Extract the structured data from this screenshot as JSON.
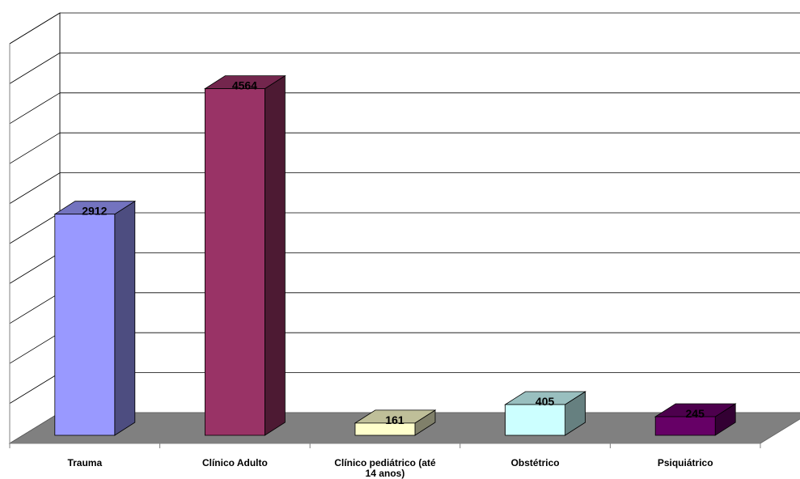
{
  "chart_data": {
    "type": "bar",
    "categories": [
      "Trauma",
      "Clínico Adulto",
      "Clínico pediátrico (até 14 anos)",
      "Obstétrico",
      "Psiquiátrico"
    ],
    "category_lines": [
      [
        "Trauma"
      ],
      [
        "Clínico Adulto"
      ],
      [
        "Clínico pediátrico (até",
        "14 anos)"
      ],
      [
        "Obstétrico"
      ],
      [
        "Psiquiátrico"
      ]
    ],
    "values": [
      2912,
      4564,
      161,
      405,
      245
    ],
    "data_labels": [
      "2912",
      "4564",
      "161",
      "405",
      "245"
    ],
    "ylim": [
      0,
      5000
    ],
    "grid": true,
    "legend": "none",
    "three_d": true,
    "colors": {
      "front": [
        "#9999ff",
        "#993366",
        "#ffffcc",
        "#ccffff",
        "#660066"
      ],
      "side": [
        "#4d4d80",
        "#4d1a33",
        "#80806a",
        "#668080",
        "#330033"
      ],
      "top": [
        "#7373bf",
        "#73264d",
        "#bfbf99",
        "#99bfbf",
        "#4d004d"
      ],
      "floor": "#808080",
      "gridline": "#000000"
    }
  }
}
